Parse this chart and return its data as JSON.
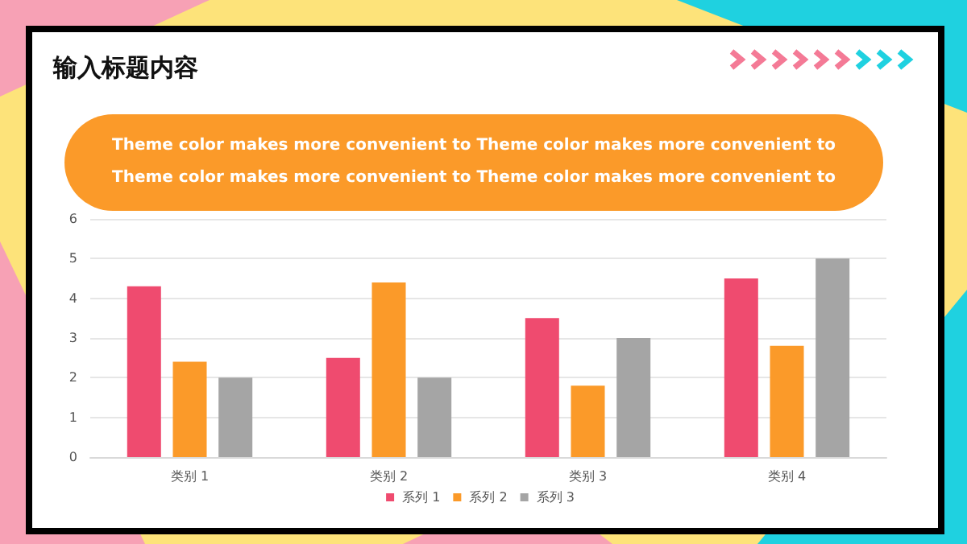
{
  "chart_data": {
    "type": "bar",
    "title": "输入标题内容",
    "subtitle": "Theme color makes more convenient to Theme color makes more convenient to Theme color makes more convenient to Theme color makes more convenient to",
    "categories": [
      "类别 1",
      "类别 2",
      "类别 3",
      "类别 4"
    ],
    "series": [
      {
        "name": "系列 1",
        "color": "#ef4b6f",
        "values": [
          4.3,
          2.5,
          3.5,
          4.5
        ]
      },
      {
        "name": "系列 2",
        "color": "#fb9a29",
        "values": [
          2.4,
          4.4,
          1.8,
          2.8
        ]
      },
      {
        "name": "系列 3",
        "color": "#a5a5a5",
        "values": [
          2,
          2,
          3,
          5
        ]
      }
    ],
    "ylim": [
      0,
      6
    ],
    "yticks": [
      0,
      1,
      2,
      3,
      4,
      5,
      6
    ],
    "grid": "y",
    "legend": "bottom"
  }
}
